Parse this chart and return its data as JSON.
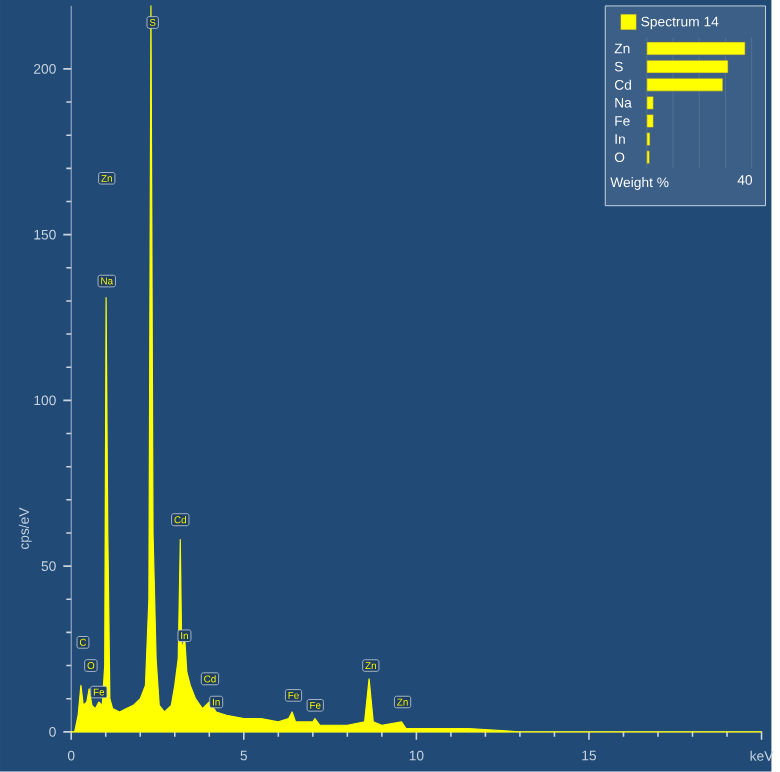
{
  "chart_data": [
    {
      "type": "area",
      "ylabel": "cps/eV",
      "color": "#ffff00",
      "x": [
        0,
        0.1,
        0.2,
        0.28,
        0.35,
        0.45,
        0.52,
        0.6,
        0.7,
        0.8,
        0.9,
        0.97,
        1.01,
        1.06,
        1.12,
        1.2,
        1.4,
        1.6,
        1.8,
        2.0,
        2.15,
        2.25,
        2.31,
        2.37,
        2.46,
        2.55,
        2.7,
        2.9,
        3.0,
        3.1,
        3.16,
        3.2,
        3.29,
        3.35,
        3.45,
        3.6,
        3.8,
        4.0,
        4.2,
        4.5,
        5.0,
        5.5,
        6.0,
        6.3,
        6.4,
        6.5,
        7.0,
        7.06,
        7.2,
        8.0,
        8.5,
        8.63,
        8.75,
        9.0,
        9.57,
        9.7,
        10.5,
        11.5,
        13,
        14,
        20
      ],
      "values": [
        0,
        0,
        5,
        14,
        8,
        9,
        13,
        8,
        7,
        9,
        8,
        20,
        131,
        60,
        10,
        7,
        6,
        7,
        8,
        10,
        14,
        40,
        219,
        60,
        22,
        8,
        6,
        8,
        14,
        22,
        58,
        25,
        28,
        18,
        14,
        10,
        7,
        9,
        6,
        5,
        4,
        4,
        3,
        4,
        6,
        3,
        3,
        4,
        2,
        2,
        3,
        16,
        3,
        2,
        3,
        1,
        1,
        1,
        0,
        0,
        0
      ],
      "xlim": [
        0,
        20
      ],
      "xticks": [
        0,
        5,
        10,
        15,
        {
          "value": 20,
          "label": "keV"
        }
      ],
      "ylim": [
        0,
        219
      ],
      "yticks": [
        0,
        50,
        100,
        150,
        200
      ],
      "grid": false,
      "marker": "none",
      "annotations": [
        {
          "text": "S",
          "x": 2.36,
          "y": 214
        },
        {
          "text": "Zn",
          "x": 1.03,
          "y": 167
        },
        {
          "text": "Na",
          "x": 1.03,
          "y": 136
        },
        {
          "text": "Cd",
          "x": 3.16,
          "y": 64
        },
        {
          "text": "In",
          "x": 3.28,
          "y": 29
        },
        {
          "text": "Cd",
          "x": 4.02,
          "y": 16
        },
        {
          "text": "In",
          "x": 4.2,
          "y": 9
        },
        {
          "text": "C",
          "x": 0.34,
          "y": 27
        },
        {
          "text": "O",
          "x": 0.57,
          "y": 20
        },
        {
          "text": "Fe",
          "x": 0.8,
          "y": 12
        },
        {
          "text": "Fe",
          "x": 6.44,
          "y": 11
        },
        {
          "text": "Fe",
          "x": 7.07,
          "y": 8
        },
        {
          "text": "Zn",
          "x": 8.68,
          "y": 20
        },
        {
          "text": "Zn",
          "x": 9.6,
          "y": 9
        }
      ]
    },
    {
      "type": "bar",
      "orientation": "horizontal",
      "xlabel": "Weight %",
      "categories": [
        "Zn",
        "S",
        "Cd",
        "Na",
        "Fe",
        "In",
        "O"
      ],
      "series": [
        {
          "name": "Spectrum 14",
          "color": "#ffff00",
          "values": [
            37.5,
            31,
            29,
            2.5,
            2.5,
            1.2,
            1
          ]
        }
      ],
      "xlim": [
        0,
        40
      ],
      "xticks": [
        {
          "value": 0,
          "label": null
        },
        {
          "value": 10,
          "label": null
        },
        {
          "value": 20,
          "label": null
        },
        {
          "value": 30,
          "label": null
        },
        40
      ],
      "grid": "x",
      "legend": "top"
    }
  ]
}
